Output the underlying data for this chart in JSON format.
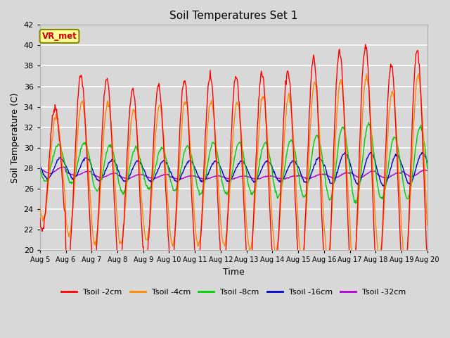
{
  "title": "Soil Temperatures Set 1",
  "xlabel": "Time",
  "ylabel": "Soil Temperature (C)",
  "ylim": [
    20,
    42
  ],
  "background_color": "#d8d8d8",
  "plot_bg_color": "#d8d8d8",
  "grid_color": "#ffffff",
  "annotation_text": "VR_met",
  "annotation_bg": "#ffff99",
  "annotation_border": "#888800",
  "annotation_text_color": "#cc0000",
  "series_colors": [
    "#ff0000",
    "#ff8800",
    "#00cc00",
    "#0000cc",
    "#aa00cc"
  ],
  "legend_labels": [
    "Tsoil -2cm",
    "Tsoil -4cm",
    "Tsoil -8cm",
    "Tsoil -16cm",
    "Tsoil -32cm"
  ],
  "x_tick_labels": [
    "Aug 5",
    "Aug 6",
    "Aug 7",
    "Aug 8",
    "Aug 9",
    "Aug 10",
    "Aug 11",
    "Aug 12",
    "Aug 13",
    "Aug 14",
    "Aug 15",
    "Aug 16",
    "Aug 17",
    "Aug 18",
    "Aug 19",
    "Aug 20"
  ],
  "num_days": 15,
  "samples_per_day": 48,
  "figsize": [
    6.4,
    4.8
  ],
  "dpi": 100
}
